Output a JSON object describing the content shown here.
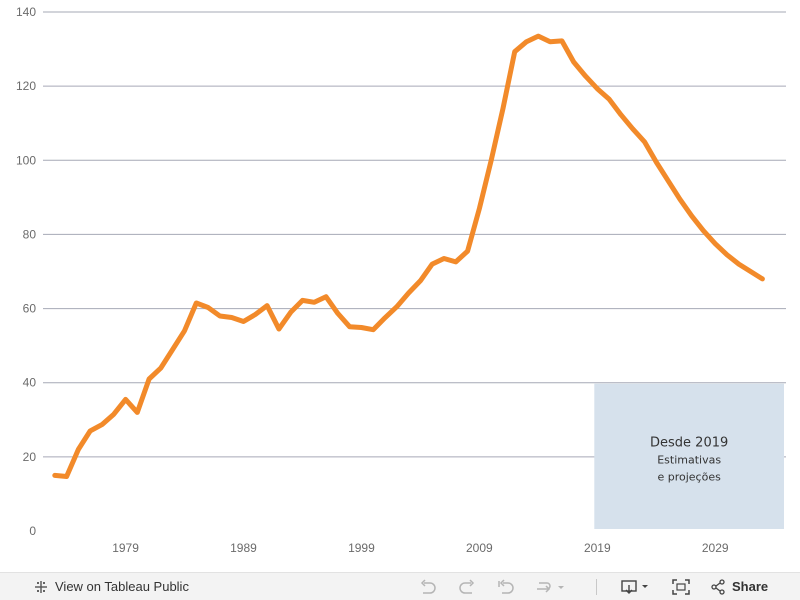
{
  "chart_data": {
    "type": "line",
    "title": "",
    "xlabel": "",
    "ylabel": "",
    "x_range": [
      1972,
      2035
    ],
    "ylim": [
      0,
      140
    ],
    "yticks": [
      "0",
      "20",
      "40",
      "60",
      "80",
      "100",
      "120",
      "140"
    ],
    "ytick_values": [
      0,
      20,
      40,
      60,
      80,
      100,
      120,
      140
    ],
    "xticks": [
      "1979",
      "1989",
      "1999",
      "2009",
      "2019",
      "2029"
    ],
    "xtick_values": [
      1979,
      1989,
      1999,
      2009,
      2019,
      2029
    ],
    "grid": true,
    "series": [
      {
        "color": "#f28a2a",
        "x": [
          1973,
          1974,
          1975,
          1976,
          1977,
          1978,
          1979,
          1980,
          1981,
          1982,
          1983,
          1984,
          1985,
          1986,
          1987,
          1988,
          1989,
          1990,
          1991,
          1992,
          1993,
          1994,
          1995,
          1996,
          1997,
          1998,
          1999,
          2000,
          2001,
          2002,
          2003,
          2004,
          2005,
          2006,
          2007,
          2008,
          2009,
          2010,
          2011,
          2012,
          2013,
          2014,
          2015,
          2016,
          2017,
          2018,
          2019,
          2020,
          2021,
          2022,
          2023,
          2024,
          2025,
          2026,
          2027,
          2028,
          2029,
          2030,
          2031,
          2032,
          2033
        ],
        "values": [
          15.0,
          14.7,
          22.0,
          27.0,
          28.7,
          31.5,
          35.5,
          32.0,
          41.0,
          44.0,
          49.0,
          54.0,
          61.5,
          60.3,
          58.0,
          57.6,
          56.5,
          58.4,
          60.8,
          54.5,
          59.0,
          62.2,
          61.7,
          63.2,
          58.7,
          55.1,
          54.9,
          54.3,
          57.5,
          60.5,
          64.2,
          67.5,
          72.0,
          73.5,
          72.6,
          75.5,
          87.0,
          100.0,
          114.0,
          129.3,
          132.0,
          133.5,
          132.0,
          132.2,
          126.5,
          122.7,
          119.3,
          116.5,
          112.3,
          108.5,
          105.0,
          99.5,
          94.5,
          89.5,
          85.0,
          81.0,
          77.5,
          74.5,
          72.0,
          70.0,
          68.0
        ]
      }
    ],
    "annotation": {
      "year_start": 2019,
      "y_top": 40,
      "lines": [
        "Desde 2019",
        "Estimativas",
        "e projeções"
      ]
    }
  },
  "toolbar": {
    "view_label": "View on Tableau Public",
    "share_label": "Share",
    "icons": {
      "tableau": "tableau-logo-icon",
      "undo": "undo-icon",
      "redo": "redo-icon",
      "revert": "revert-icon",
      "refresh": "refresh-icon",
      "download": "download-icon",
      "fullscreen": "fullscreen-icon",
      "share": "share-icon"
    }
  }
}
